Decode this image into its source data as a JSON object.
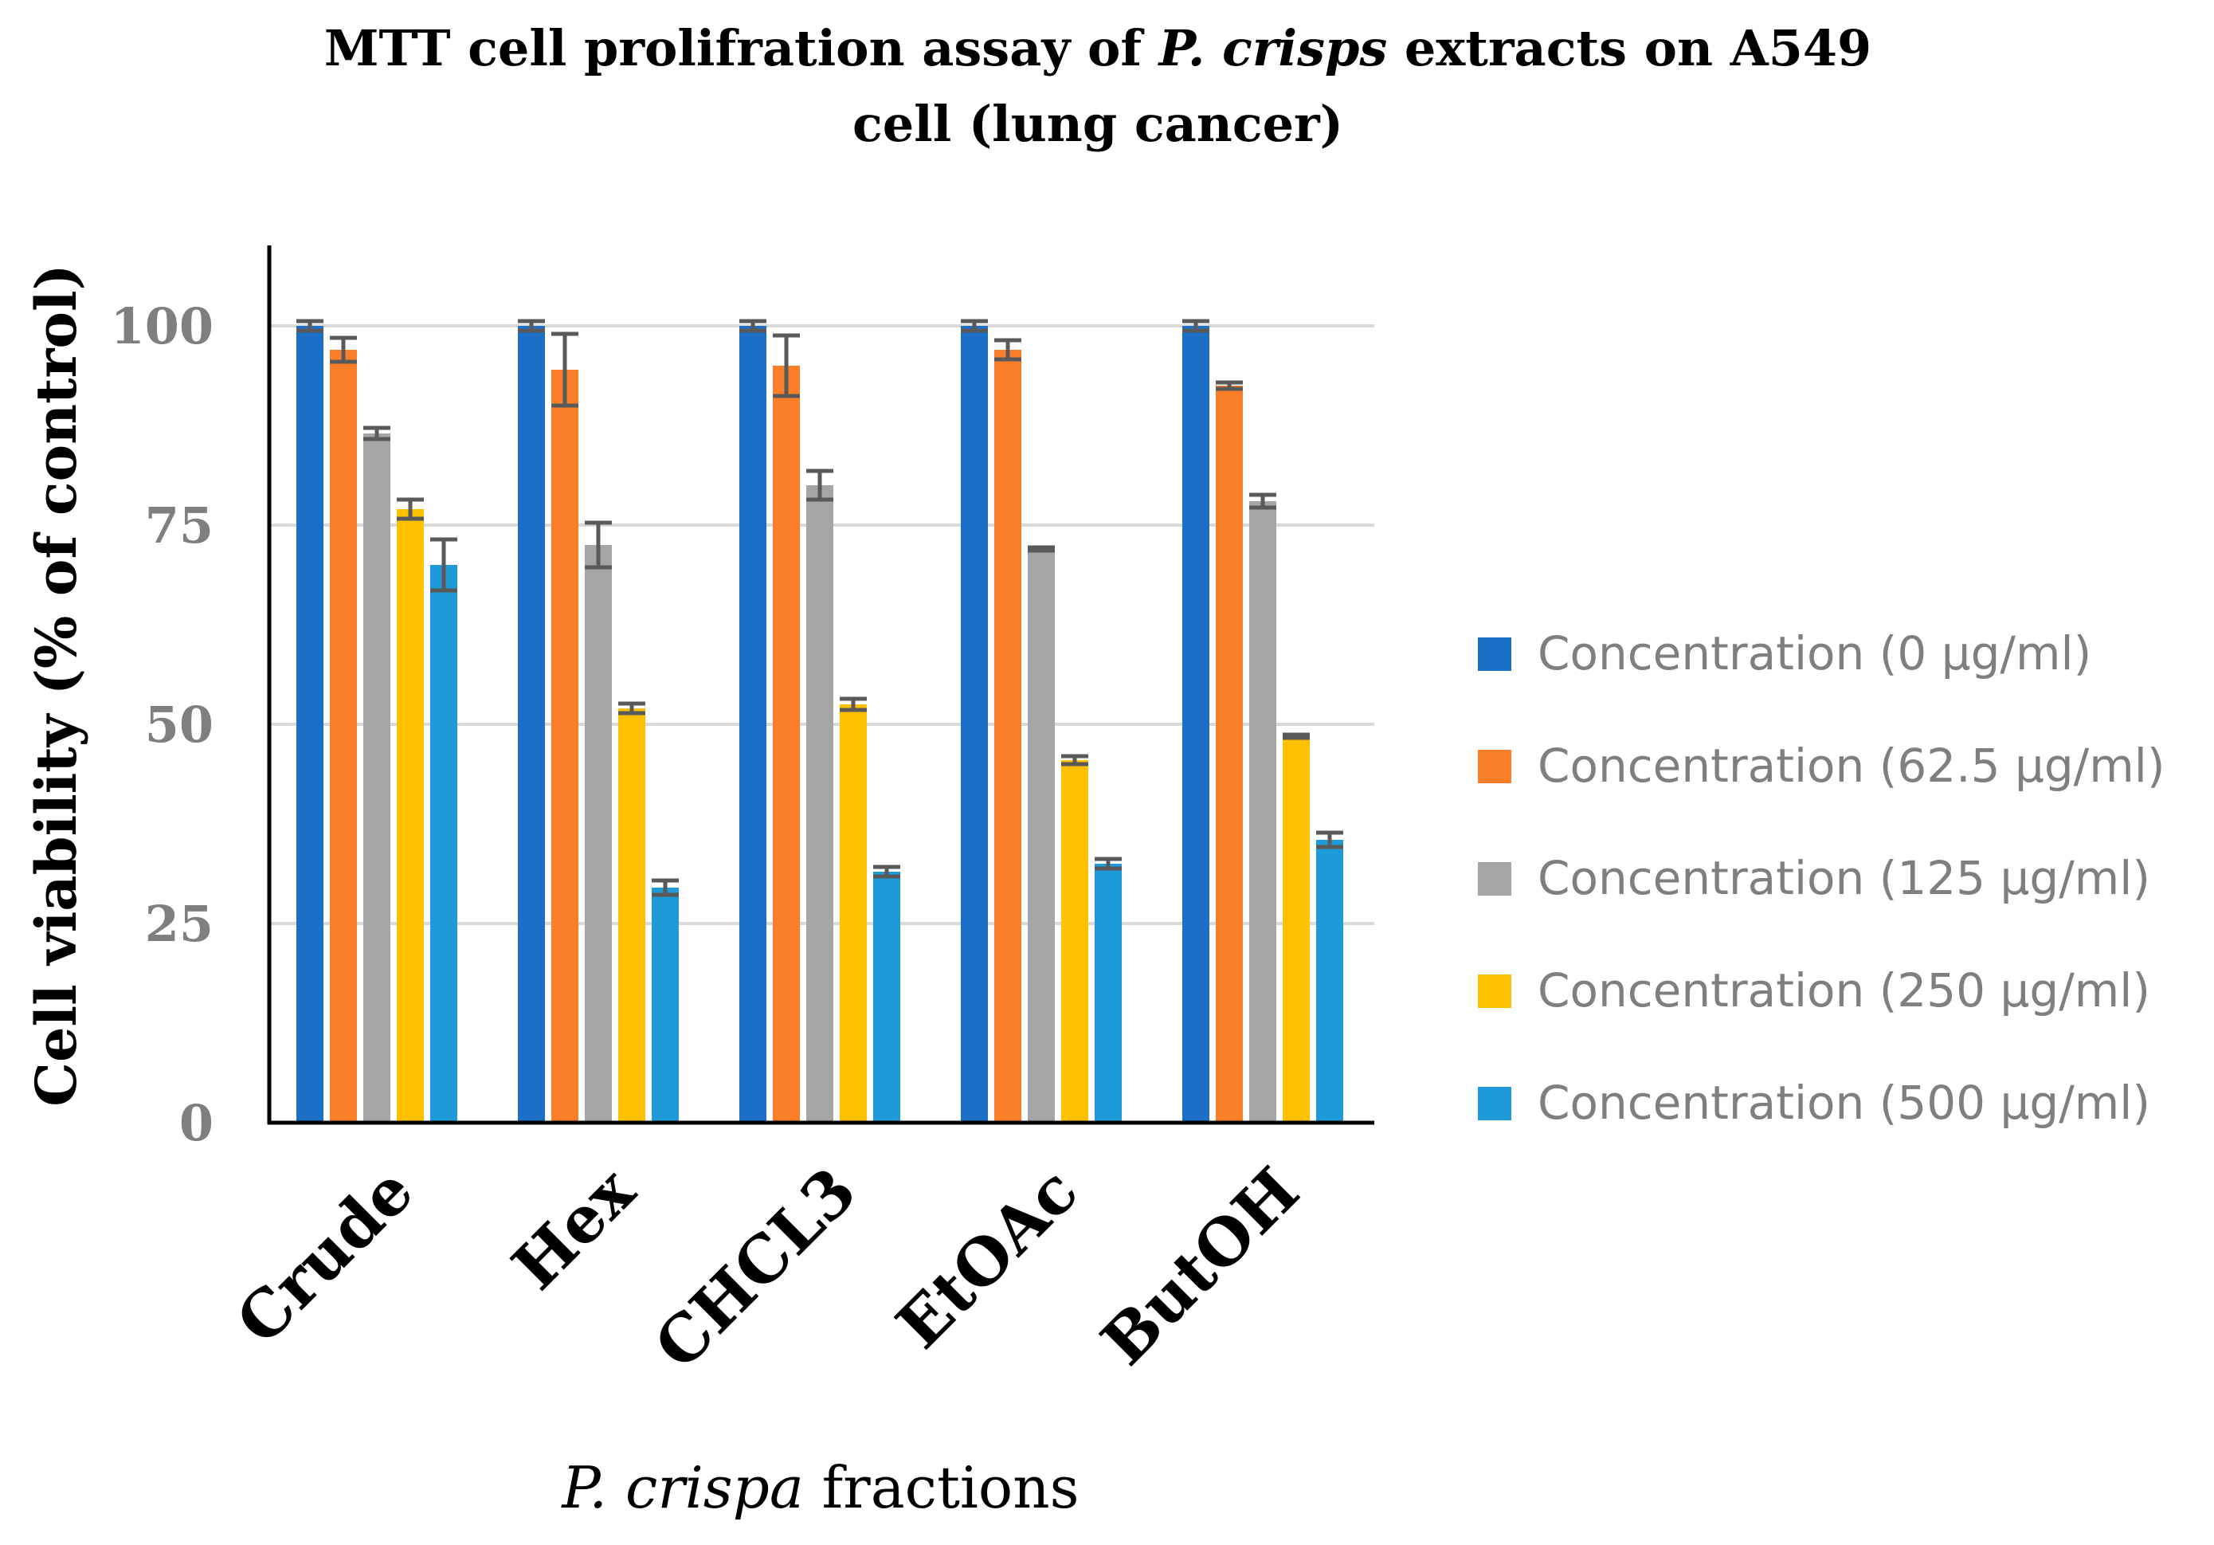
{
  "chart_data": {
    "type": "bar",
    "title_parts": [
      "MTT cell prolifration assay of ",
      "P. crisps",
      " extracts on A549"
    ],
    "title_line2": "cell (lung cancer)",
    "ylabel": "Cell viability (% of control)",
    "xlabel_italic": "P. crispa",
    "xlabel_rest": " fractions",
    "categories": [
      "Crude",
      "Hex",
      "CHCL3",
      "EtOAc",
      "ButOH"
    ],
    "yticks": [
      "0",
      "25",
      "50",
      "75",
      "100"
    ],
    "ylim": [
      0,
      110
    ],
    "grid": true,
    "legend_position": "right",
    "series": [
      {
        "name": "Concentration (0 μg/ml)",
        "color": "#1b6fc5",
        "values": [
          100,
          100,
          100,
          100,
          100
        ],
        "errors": [
          0.6,
          0.6,
          0.6,
          0.6,
          0.6
        ]
      },
      {
        "name": "Concentration (62.5 μg/ml)",
        "color": "#fb7f28",
        "values": [
          97,
          94.5,
          95,
          97,
          92.5
        ],
        "errors": [
          1.5,
          4.5,
          3.8,
          1.2,
          0.4
        ]
      },
      {
        "name": "Concentration (125 μg/ml)",
        "color": "#a5a5a5",
        "values": [
          86.5,
          72.5,
          80,
          72,
          78
        ],
        "errors": [
          0.7,
          2.8,
          1.8,
          0.2,
          0.8
        ]
      },
      {
        "name": "Concentration (250 μg/ml)",
        "color": "#ffc000",
        "values": [
          77,
          52,
          52.5,
          45.5,
          48.5
        ],
        "errors": [
          1.2,
          0.6,
          0.7,
          0.5,
          0.2
        ]
      },
      {
        "name": "Concentration (500 μg/ml)",
        "color": "#1f9ad8",
        "values": [
          70,
          29.5,
          31.5,
          32.5,
          35.5
        ],
        "errors": [
          3.2,
          0.9,
          0.6,
          0.6,
          0.9
        ]
      }
    ]
  }
}
